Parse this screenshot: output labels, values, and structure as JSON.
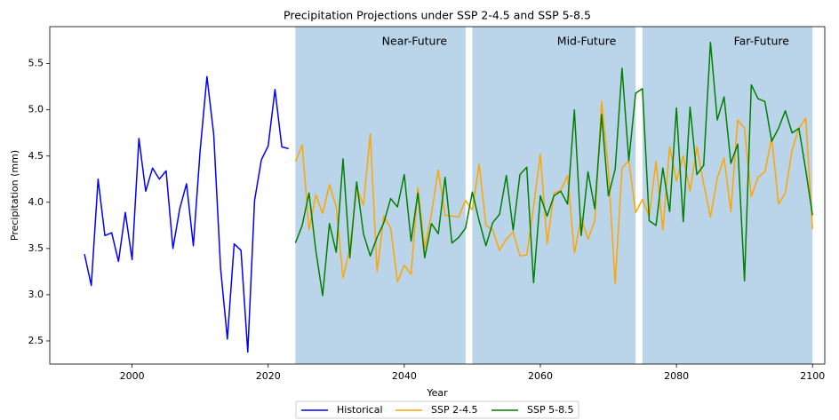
{
  "chart_data": {
    "type": "line",
    "title": "Precipitation Projections under SSP 2-4.5 and SSP 5-8.5",
    "xlabel": "Year",
    "ylabel": "Precipitation (mm)",
    "xlim": [
      1987.9,
      2101.8
    ],
    "ylim": [
      2.25,
      5.9
    ],
    "xticks": [
      2000,
      2020,
      2040,
      2060,
      2080,
      2100
    ],
    "yticks": [
      2.5,
      {
        "value": 3,
        "label": "3.0"
      },
      3.5,
      {
        "value": 4,
        "label": "4.0"
      },
      4.5,
      {
        "value": 5,
        "label": "5.0"
      },
      5.5
    ],
    "legend": "lower center outside",
    "spans": [
      {
        "start": 2024,
        "end": 2049,
        "label": "Near-Future",
        "color": "#bad4e9"
      },
      {
        "start": 2050,
        "end": 2074,
        "label": "Mid-Future",
        "color": "#bad4e9"
      },
      {
        "start": 2075,
        "end": 2100,
        "label": "Far-Future",
        "color": "#bad4e9"
      }
    ],
    "series": [
      {
        "name": "Historical",
        "color": "#0000ff",
        "x": [
          1993,
          1994,
          1995,
          1996,
          1997,
          1998,
          1999,
          2000,
          2001,
          2002,
          2003,
          2004,
          2005,
          2006,
          2007,
          2008,
          2009,
          2010,
          2011,
          2012,
          2013,
          2014,
          2015,
          2016,
          2017,
          2018,
          2019,
          2020,
          2021,
          2022,
          2023
        ],
        "values": [
          3.44,
          3.1,
          4.25,
          3.64,
          3.67,
          3.36,
          3.89,
          3.38,
          4.69,
          4.12,
          4.37,
          4.25,
          4.34,
          3.5,
          3.93,
          4.2,
          3.53,
          4.56,
          5.36,
          4.73,
          3.29,
          2.52,
          3.55,
          3.48,
          2.38,
          4.02,
          4.46,
          4.61,
          5.22,
          4.6,
          4.58
        ]
      },
      {
        "name": "SSP 2-4.5",
        "color": "#ffa500",
        "x": [
          2024,
          2025,
          2026,
          2027,
          2028,
          2029,
          2030,
          2031,
          2032,
          2033,
          2034,
          2035,
          2036,
          2037,
          2038,
          2039,
          2040,
          2041,
          2042,
          2043,
          2044,
          2045,
          2046,
          2047,
          2048,
          2049,
          2050,
          2051,
          2052,
          2053,
          2054,
          2055,
          2056,
          2057,
          2058,
          2059,
          2060,
          2061,
          2062,
          2063,
          2064,
          2065,
          2066,
          2067,
          2068,
          2069,
          2070,
          2071,
          2072,
          2073,
          2074,
          2075,
          2076,
          2077,
          2078,
          2079,
          2080,
          2081,
          2082,
          2083,
          2084,
          2085,
          2086,
          2087,
          2088,
          2089,
          2090,
          2091,
          2092,
          2093,
          2094,
          2095,
          2096,
          2097,
          2098,
          2099,
          2100
        ],
        "values": [
          4.44,
          4.62,
          3.7,
          4.08,
          3.88,
          4.19,
          3.95,
          3.18,
          3.5,
          4.15,
          3.97,
          4.74,
          3.25,
          3.85,
          3.72,
          3.14,
          3.32,
          3.22,
          4.16,
          3.5,
          3.88,
          4.35,
          3.86,
          3.85,
          3.84,
          4.02,
          3.92,
          4.41,
          3.75,
          3.7,
          3.48,
          3.6,
          3.68,
          3.42,
          3.43,
          3.95,
          4.52,
          3.55,
          4.1,
          4.13,
          4.29,
          3.45,
          3.83,
          3.6,
          3.8,
          5.09,
          4.35,
          3.12,
          4.37,
          4.45,
          3.89,
          4.03,
          3.85,
          4.44,
          3.7,
          4.6,
          4.23,
          4.5,
          4.12,
          4.6,
          4.2,
          3.84,
          4.26,
          4.48,
          3.9,
          4.89,
          4.8,
          4.06,
          4.27,
          4.33,
          4.7,
          3.98,
          4.1,
          4.57,
          4.8,
          4.91,
          3.71
        ]
      },
      {
        "name": "SSP 5-8.5",
        "color": "#008000",
        "x": [
          2024,
          2025,
          2026,
          2027,
          2028,
          2029,
          2030,
          2031,
          2032,
          2033,
          2034,
          2035,
          2036,
          2037,
          2038,
          2039,
          2040,
          2041,
          2042,
          2043,
          2044,
          2045,
          2046,
          2047,
          2048,
          2049,
          2050,
          2051,
          2052,
          2053,
          2054,
          2055,
          2056,
          2057,
          2058,
          2059,
          2060,
          2061,
          2062,
          2063,
          2064,
          2065,
          2066,
          2067,
          2068,
          2069,
          2070,
          2071,
          2072,
          2073,
          2074,
          2075,
          2076,
          2077,
          2078,
          2079,
          2080,
          2081,
          2082,
          2083,
          2084,
          2085,
          2086,
          2087,
          2088,
          2089,
          2090,
          2091,
          2092,
          2093,
          2094,
          2095,
          2096,
          2097,
          2098,
          2099,
          2100
        ],
        "values": [
          3.56,
          3.75,
          4.1,
          3.48,
          2.99,
          3.77,
          3.46,
          4.47,
          3.4,
          4.22,
          3.66,
          3.42,
          3.62,
          3.78,
          4.04,
          3.95,
          4.3,
          3.58,
          4.1,
          3.4,
          3.77,
          3.66,
          4.27,
          3.56,
          3.62,
          3.72,
          4.11,
          3.8,
          3.53,
          3.78,
          3.87,
          4.29,
          3.7,
          4.3,
          4.38,
          3.13,
          4.07,
          3.85,
          4.07,
          4.12,
          3.98,
          5.0,
          3.64,
          4.33,
          3.93,
          4.95,
          4.07,
          4.36,
          5.45,
          4.45,
          5.18,
          5.23,
          3.8,
          3.75,
          4.37,
          3.9,
          5.02,
          3.79,
          5.03,
          4.3,
          4.4,
          5.73,
          4.89,
          5.14,
          4.42,
          4.63,
          3.15,
          5.27,
          5.12,
          5.09,
          4.66,
          4.8,
          4.99,
          4.75,
          4.8,
          4.35,
          3.86
        ]
      }
    ]
  }
}
